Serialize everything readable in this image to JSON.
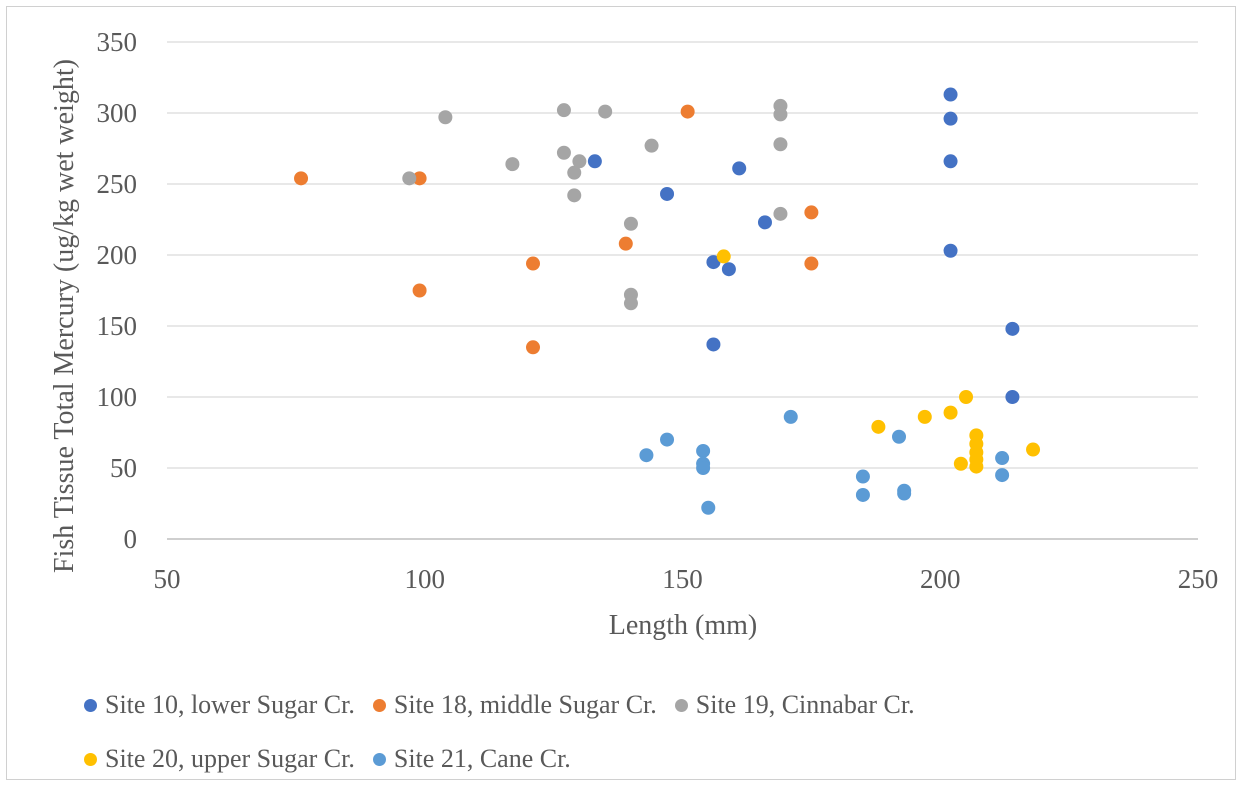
{
  "chart_data": {
    "type": "scatter",
    "xlabel": "Length (mm)",
    "ylabel": "Fish Tissue Total Mercury (ug/kg wet weight)",
    "xlim": [
      50,
      250
    ],
    "ylim": [
      0,
      350
    ],
    "x_ticks": [
      "50",
      "100",
      "150",
      "200",
      "250"
    ],
    "y_ticks": [
      "0",
      "50",
      "100",
      "150",
      "200",
      "250",
      "300",
      "350"
    ],
    "grid": "horizontal",
    "legend_position": "bottom",
    "series": [
      {
        "name": "Site 10, lower Sugar Cr.",
        "color": "#4472C4",
        "points": [
          [
            133,
            266
          ],
          [
            147,
            243
          ],
          [
            156,
            195
          ],
          [
            159,
            190
          ],
          [
            156,
            137
          ],
          [
            161,
            261
          ],
          [
            166,
            223
          ],
          [
            202,
            313
          ],
          [
            202,
            296
          ],
          [
            202,
            266
          ],
          [
            202,
            203
          ],
          [
            214,
            148
          ],
          [
            214,
            100
          ]
        ]
      },
      {
        "name": "Site 18, middle Sugar Cr.",
        "color": "#ED7D31",
        "points": [
          [
            76,
            254
          ],
          [
            99,
            254
          ],
          [
            99,
            175
          ],
          [
            121,
            194
          ],
          [
            121,
            135
          ],
          [
            139,
            208
          ],
          [
            151,
            301
          ],
          [
            175,
            230
          ],
          [
            175,
            194
          ]
        ]
      },
      {
        "name": "Site 19, Cinnabar Cr.",
        "color": "#A5A5A5",
        "points": [
          [
            97,
            254
          ],
          [
            104,
            297
          ],
          [
            117,
            264
          ],
          [
            127,
            302
          ],
          [
            127,
            272
          ],
          [
            129,
            258
          ],
          [
            129,
            242
          ],
          [
            130,
            266
          ],
          [
            135,
            301
          ],
          [
            140,
            222
          ],
          [
            140,
            172
          ],
          [
            140,
            166
          ],
          [
            144,
            277
          ],
          [
            169,
            305
          ],
          [
            169,
            299
          ],
          [
            169,
            278
          ],
          [
            169,
            229
          ]
        ]
      },
      {
        "name": "Site 20, upper Sugar Cr.",
        "color": "#FFC000",
        "points": [
          [
            158,
            199
          ],
          [
            188,
            79
          ],
          [
            197,
            86
          ],
          [
            202,
            89
          ],
          [
            204,
            53
          ],
          [
            205,
            100
          ],
          [
            207,
            73
          ],
          [
            207,
            67
          ],
          [
            207,
            61
          ],
          [
            207,
            56
          ],
          [
            207,
            51
          ],
          [
            218,
            63
          ]
        ]
      },
      {
        "name": "Site 21, Cane Cr.",
        "color": "#5B9BD5",
        "points": [
          [
            143,
            59
          ],
          [
            147,
            70
          ],
          [
            154,
            62
          ],
          [
            154,
            53
          ],
          [
            154,
            50
          ],
          [
            155,
            22
          ],
          [
            171,
            86
          ],
          [
            185,
            44
          ],
          [
            185,
            31
          ],
          [
            192,
            72
          ],
          [
            193,
            34
          ],
          [
            193,
            32
          ],
          [
            212,
            57
          ],
          [
            212,
            45
          ]
        ]
      }
    ]
  }
}
